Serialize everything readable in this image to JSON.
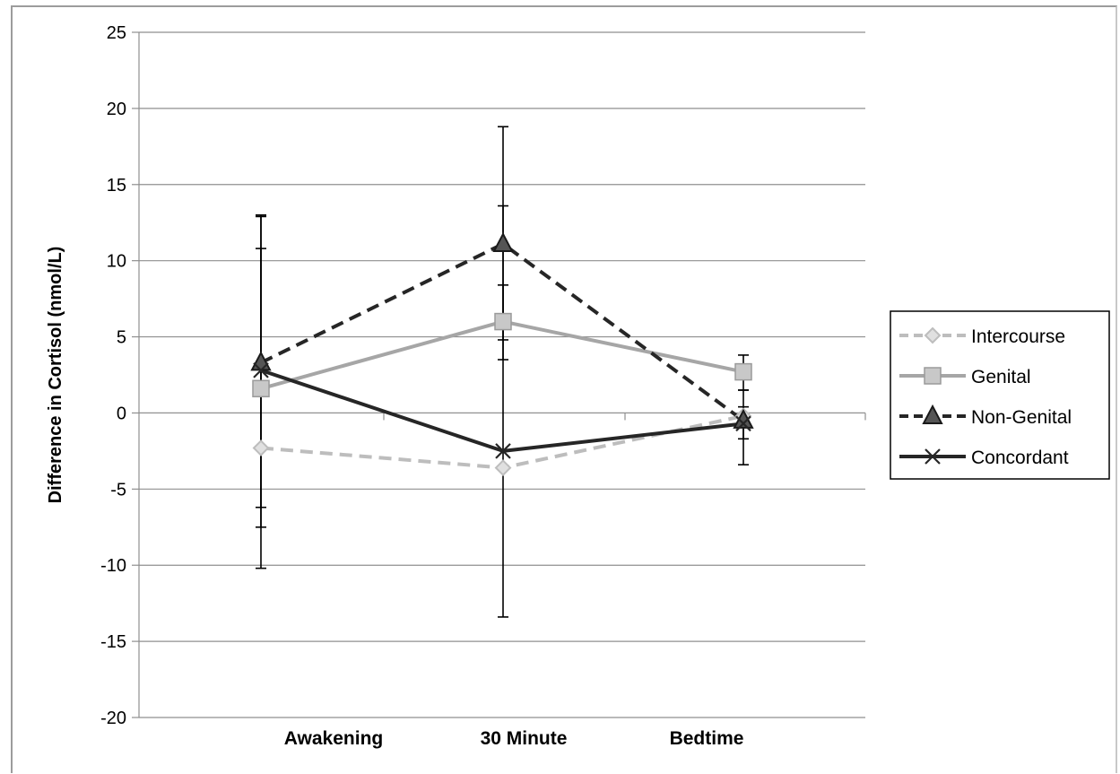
{
  "chart_data": {
    "type": "line",
    "title": "",
    "xlabel": "",
    "ylabel": "Difference in Cortisol (nmol/L)",
    "categories": [
      "Awakening",
      "30 Minute",
      "Bedtime"
    ],
    "ylim": [
      -20,
      25
    ],
    "yticks": [
      25,
      20,
      15,
      10,
      5,
      0,
      -5,
      -10,
      -15,
      -20
    ],
    "ytick_labels": [
      "25",
      "20",
      "15",
      "10",
      "5",
      "0",
      "-5",
      "-10",
      "-15",
      "-20"
    ],
    "grid": "horizontal",
    "legend_position": "right",
    "series": [
      {
        "name": "Intercourse",
        "values": [
          -2.3,
          -3.6,
          -0.2
        ],
        "color": "#bdbdbd",
        "dash": "dashed",
        "marker": "diamond",
        "error": [
          null,
          null,
          null
        ]
      },
      {
        "name": "Genital",
        "values": [
          1.6,
          6.0,
          2.7
        ],
        "color": "#a6a6a6",
        "dash": "solid",
        "marker": "square",
        "error": [
          [
            -7.5,
            10.8
          ],
          [
            3.5,
            8.4
          ],
          [
            1.5,
            3.8
          ]
        ]
      },
      {
        "name": "Non-Genital",
        "values": [
          3.3,
          11.1,
          -0.5
        ],
        "color": "#262626",
        "dash": "dashed",
        "marker": "triangle",
        "error": [
          [
            -6.2,
            12.9
          ],
          [
            4.8,
            18.8
          ],
          [
            -3.4,
            1.5
          ]
        ]
      },
      {
        "name": "Concordant",
        "values": [
          2.8,
          -2.5,
          -0.7
        ],
        "color": "#262626",
        "dash": "solid",
        "marker": "x",
        "error": [
          [
            -10.2,
            13.0
          ],
          [
            -13.4,
            13.6
          ],
          [
            -1.7,
            0.4
          ]
        ]
      }
    ]
  }
}
